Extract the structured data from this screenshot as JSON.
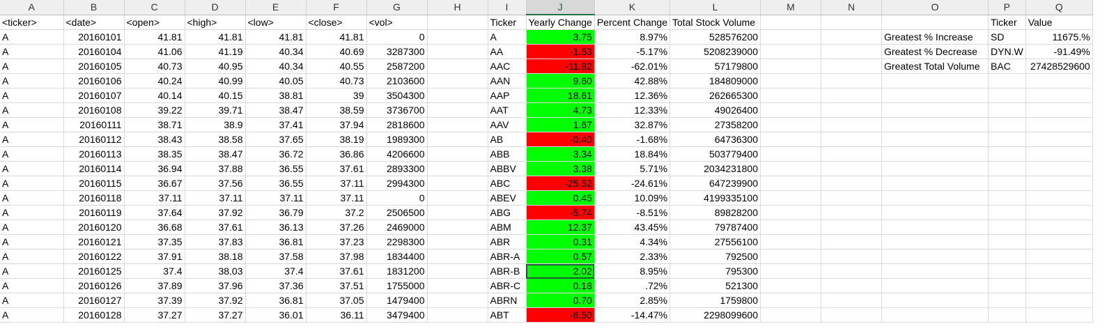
{
  "columns": [
    "A",
    "B",
    "C",
    "D",
    "E",
    "F",
    "G",
    "H",
    "I",
    "J",
    "K",
    "L",
    "M",
    "N",
    "O",
    "P",
    "Q"
  ],
  "selected_column": "J",
  "header_row": {
    "A": "<ticker>",
    "B": "<date>",
    "C": "<open>",
    "D": "<high>",
    "E": "<low>",
    "F": "<close>",
    "G": "<vol>",
    "I": "Ticker",
    "J": "Yearly Change",
    "K": "Percent Change",
    "L": "Total Stock Volume",
    "P": "Ticker",
    "Q": "Value"
  },
  "raw_rows": [
    [
      "A",
      "20160101",
      "41.81",
      "41.81",
      "41.81",
      "41.81",
      "0"
    ],
    [
      "A",
      "20160104",
      "41.06",
      "41.19",
      "40.34",
      "40.69",
      "3287300"
    ],
    [
      "A",
      "20160105",
      "40.73",
      "40.95",
      "40.34",
      "40.55",
      "2587200"
    ],
    [
      "A",
      "20160106",
      "40.24",
      "40.99",
      "40.05",
      "40.73",
      "2103600"
    ],
    [
      "A",
      "20160107",
      "40.14",
      "40.15",
      "38.81",
      "39",
      "3504300"
    ],
    [
      "A",
      "20160108",
      "39.22",
      "39.71",
      "38.47",
      "38.59",
      "3736700"
    ],
    [
      "A",
      "20160111",
      "38.71",
      "38.9",
      "37.41",
      "37.94",
      "2818600"
    ],
    [
      "A",
      "20160112",
      "38.43",
      "38.58",
      "37.65",
      "38.19",
      "1989300"
    ],
    [
      "A",
      "20160113",
      "38.35",
      "38.47",
      "36.72",
      "36.86",
      "4206600"
    ],
    [
      "A",
      "20160114",
      "36.94",
      "37.88",
      "36.55",
      "37.61",
      "2893300"
    ],
    [
      "A",
      "20160115",
      "36.67",
      "37.56",
      "36.55",
      "37.11",
      "2994300"
    ],
    [
      "A",
      "20160118",
      "37.11",
      "37.11",
      "37.11",
      "37.11",
      "0"
    ],
    [
      "A",
      "20160119",
      "37.64",
      "37.92",
      "36.79",
      "37.2",
      "2506500"
    ],
    [
      "A",
      "20160120",
      "36.68",
      "37.61",
      "36.13",
      "37.26",
      "2469000"
    ],
    [
      "A",
      "20160121",
      "37.35",
      "37.83",
      "36.81",
      "37.23",
      "2298300"
    ],
    [
      "A",
      "20160122",
      "37.91",
      "38.18",
      "37.58",
      "37.98",
      "1834400"
    ],
    [
      "A",
      "20160125",
      "37.4",
      "38.03",
      "37.4",
      "37.61",
      "1831200"
    ],
    [
      "A",
      "20160126",
      "37.89",
      "37.96",
      "37.36",
      "37.51",
      "1755000"
    ],
    [
      "A",
      "20160127",
      "37.39",
      "37.92",
      "36.81",
      "37.05",
      "1479400"
    ],
    [
      "A",
      "20160128",
      "37.27",
      "37.27",
      "36.01",
      "36.11",
      "3479400"
    ]
  ],
  "summary_rows": [
    {
      "ticker": "A",
      "change": "3.75",
      "status": "positive",
      "percent": "8.97%",
      "volume": "528576200"
    },
    {
      "ticker": "AA",
      "change": "-1.53",
      "status": "negative",
      "percent": "-5.17%",
      "volume": "5208239000"
    },
    {
      "ticker": "AAC",
      "change": "-11.82",
      "status": "negative",
      "percent": "-62.01%",
      "volume": "57179800"
    },
    {
      "ticker": "AAN",
      "change": "9.60",
      "status": "positive",
      "percent": "42.88%",
      "volume": "184809000"
    },
    {
      "ticker": "AAP",
      "change": "18.61",
      "status": "positive",
      "percent": "12.36%",
      "volume": "262665300"
    },
    {
      "ticker": "AAT",
      "change": "4.73",
      "status": "positive",
      "percent": "12.33%",
      "volume": "49026400"
    },
    {
      "ticker": "AAV",
      "change": "1.67",
      "status": "positive",
      "percent": "32.87%",
      "volume": "27358200"
    },
    {
      "ticker": "AB",
      "change": "-0.40",
      "status": "negative",
      "percent": "-1.68%",
      "volume": "64736300"
    },
    {
      "ticker": "ABB",
      "change": "3.34",
      "status": "positive",
      "percent": "18.84%",
      "volume": "503779400"
    },
    {
      "ticker": "ABBV",
      "change": "3.38",
      "status": "positive",
      "percent": "5.71%",
      "volume": "2034231800"
    },
    {
      "ticker": "ABC",
      "change": "-25.52",
      "status": "negative",
      "percent": "-24.61%",
      "volume": "647239900"
    },
    {
      "ticker": "ABEV",
      "change": "0.45",
      "status": "positive",
      "percent": "10.09%",
      "volume": "4199335100"
    },
    {
      "ticker": "ABG",
      "change": "-5.74",
      "status": "negative",
      "percent": "-8.51%",
      "volume": "89828200"
    },
    {
      "ticker": "ABM",
      "change": "12.37",
      "status": "positive",
      "percent": "43.45%",
      "volume": "79787400"
    },
    {
      "ticker": "ABR",
      "change": "0.31",
      "status": "positive",
      "percent": "4.34%",
      "volume": "27556100"
    },
    {
      "ticker": "ABR-A",
      "change": "0.57",
      "status": "positive",
      "percent": "2.33%",
      "volume": "792500"
    },
    {
      "ticker": "ABR-B",
      "change": "2.02",
      "status": "positive",
      "percent": "8.95%",
      "volume": "795300",
      "active": true
    },
    {
      "ticker": "ABR-C",
      "change": "0.18",
      "status": "positive",
      "percent": ".72%",
      "volume": "521300"
    },
    {
      "ticker": "ABRN",
      "change": "0.70",
      "status": "positive",
      "percent": "2.85%",
      "volume": "1759800"
    },
    {
      "ticker": "ABT",
      "change": "-6.50",
      "status": "negative",
      "percent": "-14.47%",
      "volume": "2298099600"
    }
  ],
  "greatest": [
    {
      "label": "Greatest % Increase",
      "ticker": "SD",
      "value": "11675.%"
    },
    {
      "label": "Greatest % Decrease",
      "ticker": "DYN.W",
      "value": "-91.49%"
    },
    {
      "label": "Greatest Total Volume",
      "ticker": "BAC",
      "value": "27428529600"
    }
  ],
  "colors": {
    "positive": "#00ff00",
    "negative": "#ff0000",
    "selection": "#217346"
  }
}
